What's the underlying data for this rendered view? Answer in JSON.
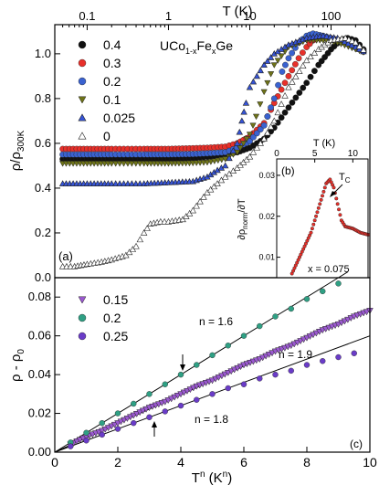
{
  "chart_data": [
    {
      "panel_label": "(a)",
      "type": "scatter",
      "x_scale": "log",
      "xlabel": "T (K)",
      "xlim": [
        0.04,
        300
      ],
      "x_ticks": [
        {
          "v": 0.1,
          "label": "0.1"
        },
        {
          "v": 1,
          "label": "1"
        },
        {
          "v": 10,
          "label": "10"
        },
        {
          "v": 100,
          "label": "100"
        }
      ],
      "ylabel_main": "ρ/ρ",
      "ylabel_sub": "300K",
      "ylim": [
        0,
        1.13
      ],
      "y_ticks": [
        {
          "v": 0,
          "label": "0.0"
        },
        {
          "v": 0.2,
          "label": "0.2"
        },
        {
          "v": 0.4,
          "label": "0.4"
        },
        {
          "v": 0.6,
          "label": "0.6"
        },
        {
          "v": 0.8,
          "label": "0.8"
        },
        {
          "v": 1.0,
          "label": "1.0"
        }
      ],
      "formula": {
        "a": "UCo",
        "b": "1-x",
        "c": "Fe",
        "d": "x",
        "e": "Ge"
      },
      "legend_position": "top-left",
      "series": [
        {
          "name": "0.4",
          "marker": "circle",
          "color": "#111111",
          "points": [
            [
              0.05,
              0.53
            ],
            [
              0.1,
              0.53
            ],
            [
              0.2,
              0.53
            ],
            [
              0.5,
              0.53
            ],
            [
              1,
              0.53
            ],
            [
              2,
              0.535
            ],
            [
              3,
              0.54
            ],
            [
              5,
              0.55
            ],
            [
              7,
              0.56
            ],
            [
              10,
              0.58
            ],
            [
              15,
              0.62
            ],
            [
              20,
              0.67
            ],
            [
              30,
              0.76
            ],
            [
              50,
              0.87
            ],
            [
              70,
              0.95
            ],
            [
              100,
              1.02
            ],
            [
              130,
              1.06
            ],
            [
              160,
              1.07
            ],
            [
              200,
              1.06
            ],
            [
              250,
              1.02
            ],
            [
              280,
              1.0
            ]
          ]
        },
        {
          "name": "0.3",
          "marker": "circle",
          "color": "#e8302a",
          "points": [
            [
              0.05,
              0.575
            ],
            [
              0.1,
              0.575
            ],
            [
              0.2,
              0.575
            ],
            [
              0.5,
              0.575
            ],
            [
              1,
              0.575
            ],
            [
              2,
              0.578
            ],
            [
              3,
              0.58
            ],
            [
              5,
              0.585
            ],
            [
              7,
              0.6
            ],
            [
              10,
              0.63
            ],
            [
              15,
              0.69
            ],
            [
              20,
              0.78
            ],
            [
              30,
              0.9
            ],
            [
              40,
              0.98
            ],
            [
              50,
              1.03
            ],
            [
              60,
              1.06
            ],
            [
              70,
              1.07
            ],
            [
              100,
              1.07
            ],
            [
              150,
              1.05
            ],
            [
              200,
              1.03
            ],
            [
              280,
              1.0
            ]
          ]
        },
        {
          "name": "0.2",
          "marker": "circle",
          "color": "#3a62d0",
          "points": [
            [
              0.05,
              0.55
            ],
            [
              0.1,
              0.55
            ],
            [
              0.2,
              0.55
            ],
            [
              0.5,
              0.55
            ],
            [
              1,
              0.55
            ],
            [
              2,
              0.552
            ],
            [
              3,
              0.555
            ],
            [
              5,
              0.56
            ],
            [
              7,
              0.58
            ],
            [
              10,
              0.61
            ],
            [
              15,
              0.68
            ],
            [
              20,
              0.8
            ],
            [
              25,
              0.92
            ],
            [
              30,
              0.98
            ],
            [
              40,
              1.05
            ],
            [
              50,
              1.08
            ],
            [
              60,
              1.09
            ],
            [
              80,
              1.08
            ],
            [
              120,
              1.06
            ],
            [
              200,
              1.03
            ],
            [
              280,
              1.0
            ]
          ]
        },
        {
          "name": "0.1",
          "marker": "triangle-down",
          "color": "#6e7318",
          "points": [
            [
              0.05,
              0.51
            ],
            [
              0.1,
              0.51
            ],
            [
              0.2,
              0.51
            ],
            [
              0.5,
              0.51
            ],
            [
              1,
              0.51
            ],
            [
              2,
              0.512
            ],
            [
              3,
              0.515
            ],
            [
              5,
              0.53
            ],
            [
              7,
              0.56
            ],
            [
              10,
              0.64
            ],
            [
              12,
              0.72
            ],
            [
              15,
              0.83
            ],
            [
              20,
              0.95
            ],
            [
              30,
              1.03
            ],
            [
              50,
              1.06
            ],
            [
              80,
              1.06
            ],
            [
              120,
              1.05
            ],
            [
              200,
              1.02
            ],
            [
              280,
              1.0
            ]
          ]
        },
        {
          "name": "0.025",
          "marker": "triangle-up",
          "color": "#3654d8",
          "points": [
            [
              0.05,
              0.42
            ],
            [
              0.1,
              0.42
            ],
            [
              0.2,
              0.42
            ],
            [
              0.5,
              0.42
            ],
            [
              1,
              0.425
            ],
            [
              2,
              0.43
            ],
            [
              3,
              0.45
            ],
            [
              4,
              0.48
            ],
            [
              5,
              0.5
            ],
            [
              7,
              0.6
            ],
            [
              8,
              0.7
            ],
            [
              9,
              0.78
            ],
            [
              10,
              0.85
            ],
            [
              15,
              0.95
            ],
            [
              20,
              1.0
            ],
            [
              30,
              1.04
            ],
            [
              50,
              1.07
            ],
            [
              80,
              1.08
            ],
            [
              120,
              1.07
            ],
            [
              200,
              1.03
            ],
            [
              280,
              1.0
            ]
          ]
        },
        {
          "name": "0",
          "marker": "triangle-open",
          "color": "#333333",
          "points": [
            [
              0.05,
              0.05
            ],
            [
              0.07,
              0.05
            ],
            [
              0.1,
              0.06
            ],
            [
              0.15,
              0.07
            ],
            [
              0.2,
              0.08
            ],
            [
              0.3,
              0.1
            ],
            [
              0.4,
              0.14
            ],
            [
              0.5,
              0.2
            ],
            [
              0.6,
              0.24
            ],
            [
              0.8,
              0.25
            ],
            [
              1,
              0.25
            ],
            [
              1.5,
              0.26
            ],
            [
              2,
              0.3
            ],
            [
              3,
              0.38
            ],
            [
              4,
              0.42
            ],
            [
              5,
              0.45
            ],
            [
              7,
              0.49
            ],
            [
              10,
              0.54
            ],
            [
              15,
              0.62
            ],
            [
              20,
              0.7
            ],
            [
              30,
              0.85
            ],
            [
              50,
              0.97
            ],
            [
              70,
              1.02
            ],
            [
              100,
              1.06
            ],
            [
              150,
              1.07
            ],
            [
              200,
              1.05
            ],
            [
              280,
              1.0
            ]
          ]
        }
      ]
    },
    {
      "panel_label": "(b)",
      "type": "scatter",
      "xlabel": "T (K)",
      "xlim": [
        0,
        12
      ],
      "x_ticks": [
        {
          "v": 0,
          "label": "0"
        },
        {
          "v": 5,
          "label": "5"
        },
        {
          "v": 10,
          "label": "10"
        }
      ],
      "ylim": [
        0.005,
        0.034
      ],
      "y_ticks": [
        {
          "v": 0.01,
          "label": "0.01"
        },
        {
          "v": 0.02,
          "label": "0.02"
        },
        {
          "v": 0.03,
          "label": "0.03"
        }
      ],
      "annotation": "x = 0.075",
      "arrow_label_main": "T",
      "arrow_label_sub": "C",
      "series": [
        {
          "name": "x = 0.075",
          "marker": "circle",
          "color": "#e8302a",
          "points": [
            [
              2.0,
              0.006
            ],
            [
              2.5,
              0.008
            ],
            [
              3.0,
              0.01
            ],
            [
              3.5,
              0.012
            ],
            [
              4.0,
              0.014
            ],
            [
              4.5,
              0.016
            ],
            [
              5.0,
              0.019
            ],
            [
              5.5,
              0.022
            ],
            [
              6.0,
              0.025
            ],
            [
              6.5,
              0.028
            ],
            [
              7.0,
              0.029
            ],
            [
              7.5,
              0.027
            ],
            [
              8.0,
              0.023
            ],
            [
              8.5,
              0.019
            ],
            [
              9.0,
              0.0175
            ],
            [
              10.0,
              0.017
            ],
            [
              11.0,
              0.016
            ],
            [
              12.0,
              0.0155
            ]
          ]
        }
      ]
    },
    {
      "panel_label": "(c)",
      "type": "scatter",
      "xlabel_main": "T",
      "xlabel_exp": "n",
      "xlabel_tail": " (K",
      "xlabel_exp2": "n",
      "xlabel_close": ")",
      "ylabel": "ρ - ρ",
      "ylabel_sub": "0",
      "xlim": [
        0,
        10
      ],
      "ylim": [
        0,
        0.09
      ],
      "x_ticks": [
        {
          "v": 0,
          "label": "0"
        },
        {
          "v": 2,
          "label": "2"
        },
        {
          "v": 4,
          "label": "4"
        },
        {
          "v": 6,
          "label": "6"
        },
        {
          "v": 8,
          "label": "8"
        },
        {
          "v": 10,
          "label": "10"
        }
      ],
      "y_ticks": [
        {
          "v": 0,
          "label": "0.00"
        },
        {
          "v": 0.02,
          "label": "0.02"
        },
        {
          "v": 0.04,
          "label": "0.04"
        },
        {
          "v": 0.06,
          "label": "0.06"
        },
        {
          "v": 0.08,
          "label": "0.08"
        }
      ],
      "fit_labels": [
        "n = 1.6",
        "n = 1.9",
        "n = 1.8"
      ],
      "series": [
        {
          "name": "0.15",
          "marker": "triangle-down",
          "color": "#9b59d0",
          "points": [
            [
              0.5,
              0.004
            ],
            [
              1,
              0.008
            ],
            [
              1.5,
              0.011
            ],
            [
              2,
              0.015
            ],
            [
              2.5,
              0.019
            ],
            [
              3,
              0.023
            ],
            [
              3.5,
              0.026
            ],
            [
              4,
              0.03
            ],
            [
              4.5,
              0.034
            ],
            [
              5,
              0.037
            ],
            [
              5.5,
              0.041
            ],
            [
              6,
              0.045
            ],
            [
              6.5,
              0.048
            ],
            [
              7,
              0.052
            ],
            [
              7.5,
              0.055
            ],
            [
              8,
              0.059
            ],
            [
              8.5,
              0.063
            ],
            [
              9,
              0.066
            ],
            [
              9.5,
              0.07
            ],
            [
              10,
              0.073
            ]
          ],
          "fit": [
            [
              0,
              0
            ],
            [
              10,
              0.074
            ]
          ]
        },
        {
          "name": "0.2",
          "marker": "circle",
          "color": "#2fa084",
          "points": [
            [
              0.5,
              0.005
            ],
            [
              1,
              0.01
            ],
            [
              1.5,
              0.015
            ],
            [
              2,
              0.02
            ],
            [
              2.5,
              0.025
            ],
            [
              3,
              0.03
            ],
            [
              3.5,
              0.035
            ],
            [
              4,
              0.04
            ],
            [
              4.5,
              0.045
            ],
            [
              5,
              0.05
            ],
            [
              5.5,
              0.055
            ],
            [
              6,
              0.06
            ],
            [
              6.5,
              0.065
            ],
            [
              7,
              0.07
            ],
            [
              7.5,
              0.074
            ],
            [
              8,
              0.079
            ],
            [
              8.5,
              0.083
            ],
            [
              9,
              0.087
            ],
            [
              9.5,
              0.09
            ]
          ],
          "fit": [
            [
              0,
              0
            ],
            [
              9.3,
              0.093
            ]
          ]
        },
        {
          "name": "0.25",
          "marker": "circle",
          "color": "#6a3cc8",
          "points": [
            [
              0.5,
              0.003
            ],
            [
              1,
              0.006
            ],
            [
              1.5,
              0.009
            ],
            [
              2,
              0.012
            ],
            [
              2.5,
              0.015
            ],
            [
              3,
              0.018
            ],
            [
              3.5,
              0.021
            ],
            [
              4,
              0.024
            ],
            [
              4.5,
              0.027
            ],
            [
              5,
              0.03
            ],
            [
              5.5,
              0.033
            ],
            [
              6,
              0.035
            ],
            [
              6.5,
              0.038
            ],
            [
              7,
              0.04
            ],
            [
              7.5,
              0.042
            ],
            [
              8,
              0.045
            ],
            [
              8.5,
              0.047
            ],
            [
              9,
              0.049
            ],
            [
              9.5,
              0.051
            ]
          ],
          "fit": [
            [
              0,
              0
            ],
            [
              10,
              0.06
            ]
          ]
        }
      ]
    }
  ]
}
